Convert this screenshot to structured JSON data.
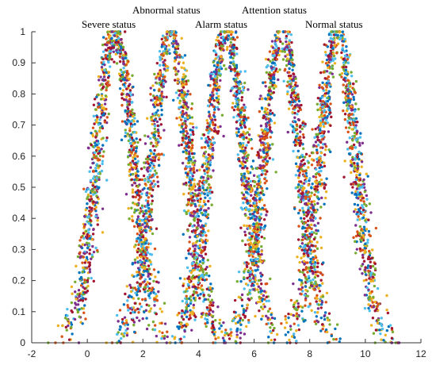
{
  "chart_data": {
    "type": "scatter",
    "title": "",
    "xlabel": "",
    "ylabel": "",
    "xlim": [
      -2,
      12
    ],
    "ylim": [
      0,
      1
    ],
    "x_ticks": [
      -2,
      0,
      2,
      4,
      6,
      8,
      10,
      12
    ],
    "y_ticks": [
      0,
      0.1,
      0.2,
      0.3,
      0.4,
      0.5,
      0.6,
      0.7,
      0.8,
      0.9,
      1
    ],
    "grid": false,
    "legend": "none",
    "distribution": "gaussian membership (peak value 1), dense multicolour random scatter",
    "marker_colors": [
      "#0072BD",
      "#D95319",
      "#EDB120",
      "#7E2F8E",
      "#77AC30",
      "#4DBEEE",
      "#A2142F"
    ],
    "series": [
      {
        "center": 1,
        "sigma": 0.65,
        "annotation": "Severe status"
      },
      {
        "center": 3,
        "sigma": 0.65,
        "annotation": "Abnormal status"
      },
      {
        "center": 5,
        "sigma": 0.65,
        "annotation": "Alarm status"
      },
      {
        "center": 7,
        "sigma": 0.65,
        "annotation": "Attention status"
      },
      {
        "center": 9,
        "sigma": 0.65,
        "annotation": "Normal status"
      }
    ]
  }
}
